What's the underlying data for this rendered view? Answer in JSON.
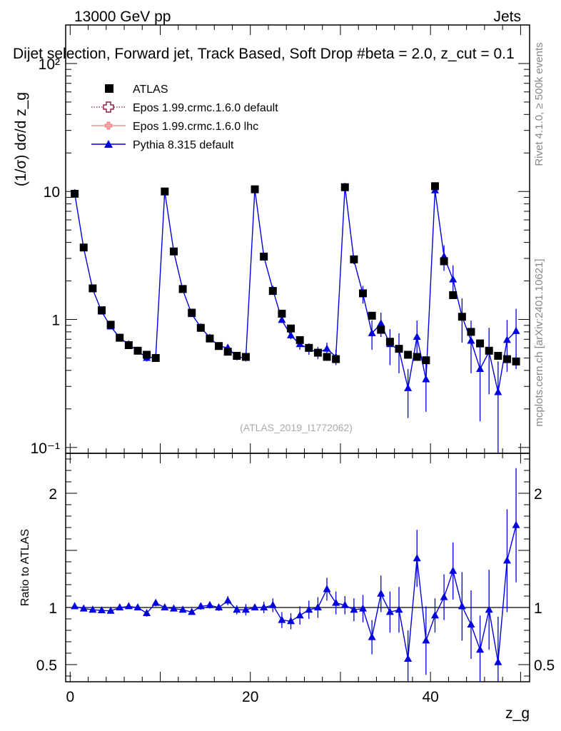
{
  "header": {
    "energy_label": "13000 GeV pp",
    "category_label": "Jets",
    "title": "Dijet selection, Forward jet, Track Based, Soft Drop #beta = 2.0, z_cut = 0.1"
  },
  "side_labels": {
    "rivet": "Rivet 4.1.0, ≥ 500k events",
    "mcplots": "mcplots.cern.ch [arXiv:2401.10621]"
  },
  "watermark": "(ATLAS_2019_I1772062)",
  "legend": [
    {
      "label": "ATLAS",
      "color": "#000000",
      "style": "square"
    },
    {
      "label": "Epos 1.99.crmc.1.6.0 default",
      "color": "#8b1a3a",
      "style": "dotted-open-cross"
    },
    {
      "label": "Epos 1.99.crmc.1.6.0 lhc",
      "color": "#f08080",
      "style": "solid-cross"
    },
    {
      "label": "Pythia 8.315 default",
      "color": "#0000e0",
      "style": "triangle"
    }
  ],
  "chart_data": [
    {
      "type": "line",
      "panel": "main",
      "ylabel": "(1/σ) dσ/d z_g",
      "yscale": "log",
      "ylim": [
        0.09,
        200
      ],
      "xlim": [
        -0.5,
        51
      ],
      "y_ticks": [
        {
          "value": 0.1,
          "label": "10⁻¹"
        },
        {
          "value": 1,
          "label": "1"
        },
        {
          "value": 10,
          "label": "10"
        },
        {
          "value": 100,
          "label": "10²"
        }
      ],
      "x": [
        0.5,
        1.5,
        2.5,
        3.5,
        4.5,
        5.5,
        6.5,
        7.5,
        8.5,
        9.5,
        10.5,
        11.5,
        12.5,
        13.5,
        14.5,
        15.5,
        16.5,
        17.5,
        18.5,
        19.5,
        20.5,
        21.5,
        22.5,
        23.5,
        24.5,
        25.5,
        26.5,
        27.5,
        28.5,
        29.5,
        30.5,
        31.5,
        32.5,
        33.5,
        34.5,
        35.5,
        36.5,
        37.5,
        38.5,
        39.5,
        40.5,
        41.5,
        42.5,
        43.5,
        44.5,
        45.5,
        46.5,
        47.5,
        48.5,
        49.5
      ],
      "series": [
        {
          "name": "ATLAS",
          "values": [
            9.6,
            3.65,
            1.75,
            1.18,
            0.91,
            0.72,
            0.63,
            0.57,
            0.53,
            0.5,
            10.0,
            3.4,
            1.73,
            1.13,
            0.86,
            0.71,
            0.62,
            0.56,
            0.52,
            0.51,
            10.4,
            3.1,
            1.67,
            1.11,
            0.85,
            0.69,
            0.6,
            0.55,
            0.51,
            0.49,
            10.8,
            2.95,
            1.6,
            1.07,
            0.83,
            0.67,
            0.59,
            0.53,
            0.51,
            0.48,
            11.0,
            2.85,
            1.55,
            1.05,
            0.8,
            0.65,
            0.57,
            0.52,
            0.49,
            0.47
          ]
        },
        {
          "name": "Pythia 8.315 default",
          "values": [
            9.7,
            3.62,
            1.72,
            1.15,
            0.88,
            0.72,
            0.64,
            0.57,
            0.5,
            0.51,
            10.0,
            3.38,
            1.7,
            1.1,
            0.87,
            0.72,
            0.62,
            0.6,
            0.51,
            0.5,
            10.4,
            3.1,
            1.71,
            0.99,
            0.75,
            0.64,
            0.59,
            0.55,
            0.59,
            0.51,
            10.9,
            2.9,
            1.58,
            0.78,
            0.93,
            0.64,
            0.58,
            0.29,
            0.73,
            0.34,
            10.2,
            3.1,
            2.05,
            1.06,
            0.68,
            0.41,
            0.56,
            0.27,
            0.69,
            0.81
          ],
          "errors": [
            0.15,
            0.06,
            0.04,
            0.03,
            0.02,
            0.02,
            0.02,
            0.02,
            0.03,
            0.03,
            0.15,
            0.06,
            0.04,
            0.03,
            0.03,
            0.03,
            0.03,
            0.03,
            0.03,
            0.03,
            0.2,
            0.07,
            0.05,
            0.05,
            0.05,
            0.06,
            0.06,
            0.06,
            0.07,
            0.07,
            0.5,
            0.2,
            0.25,
            0.2,
            0.2,
            0.2,
            0.2,
            0.12,
            0.25,
            0.15,
            0.6,
            0.7,
            0.6,
            0.4,
            0.3,
            0.25,
            0.3,
            0.2,
            0.3,
            0.4
          ]
        }
      ]
    },
    {
      "type": "line",
      "panel": "ratio",
      "ylabel": "Ratio to ATLAS",
      "xlabel": "z_g",
      "ylim": [
        0.35,
        2.35
      ],
      "xlim": [
        -0.5,
        51
      ],
      "reference_line": 1,
      "y_ticks": [
        {
          "value": 0.5,
          "label": "0.5"
        },
        {
          "value": 1,
          "label": "1"
        },
        {
          "value": 2,
          "label": "2"
        }
      ],
      "x_ticks": [
        0,
        20,
        40
      ],
      "x": [
        0.5,
        1.5,
        2.5,
        3.5,
        4.5,
        5.5,
        6.5,
        7.5,
        8.5,
        9.5,
        10.5,
        11.5,
        12.5,
        13.5,
        14.5,
        15.5,
        16.5,
        17.5,
        18.5,
        19.5,
        20.5,
        21.5,
        22.5,
        23.5,
        24.5,
        25.5,
        26.5,
        27.5,
        28.5,
        29.5,
        30.5,
        31.5,
        32.5,
        33.5,
        34.5,
        35.5,
        36.5,
        37.5,
        38.5,
        39.5,
        40.5,
        41.5,
        42.5,
        43.5,
        44.5,
        45.5,
        46.5,
        47.5,
        48.5,
        49.5
      ],
      "series": [
        {
          "name": "Pythia 8.315 default / ATLAS",
          "values": [
            1.01,
            0.99,
            0.98,
            0.975,
            0.97,
            1.0,
            1.01,
            1.0,
            0.95,
            1.04,
            1.0,
            0.99,
            0.98,
            0.96,
            1.01,
            1.02,
            1.0,
            1.06,
            0.98,
            0.98,
            1.0,
            1.0,
            1.02,
            0.89,
            0.88,
            0.93,
            0.98,
            1.0,
            1.16,
            1.04,
            1.02,
            0.98,
            0.99,
            0.74,
            1.12,
            0.96,
            0.98,
            0.55,
            1.43,
            0.71,
            0.93,
            1.09,
            1.32,
            1.01,
            0.85,
            0.63,
            0.98,
            0.52,
            1.41,
            1.72
          ],
          "errors": [
            0.015,
            0.015,
            0.02,
            0.02,
            0.02,
            0.02,
            0.02,
            0.02,
            0.03,
            0.03,
            0.015,
            0.02,
            0.02,
            0.02,
            0.03,
            0.03,
            0.03,
            0.04,
            0.04,
            0.05,
            0.02,
            0.05,
            0.06,
            0.07,
            0.07,
            0.08,
            0.08,
            0.09,
            0.1,
            0.1,
            0.08,
            0.1,
            0.12,
            0.15,
            0.16,
            0.18,
            0.2,
            0.25,
            0.25,
            0.3,
            0.15,
            0.2,
            0.25,
            0.3,
            0.3,
            0.3,
            0.35,
            0.4,
            0.45,
            0.5
          ]
        }
      ]
    }
  ]
}
